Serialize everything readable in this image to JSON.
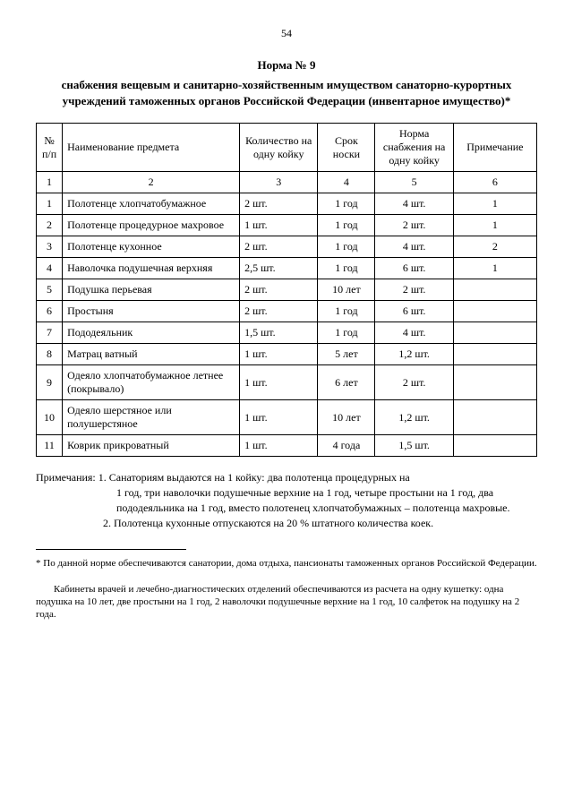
{
  "pageNumber": "54",
  "heading": {
    "title": "Норма № 9",
    "subtitle": "снабжения вещевым и санитарно-хозяйственным имуществом санаторно-курортных учреждений таможенных органов Российской Федерации (инвентарное имущество)*"
  },
  "table": {
    "headers": {
      "num": "№ п/п",
      "name": "Наименование предмета",
      "qty": "Количество на одну койку",
      "term": "Срок носки",
      "norm": "Норма снабжения на одну койку",
      "note": "Примечание"
    },
    "numRow": {
      "c1": "1",
      "c2": "2",
      "c3": "3",
      "c4": "4",
      "c5": "5",
      "c6": "6"
    },
    "rows": [
      {
        "n": "1",
        "name": "Полотенце хлопчатобумажное",
        "qty": "2 шт.",
        "term": "1 год",
        "norm": "4 шт.",
        "note": "1"
      },
      {
        "n": "2",
        "name": "Полотенце процедурное махровое",
        "qty": "1 шт.",
        "term": "1 год",
        "norm": "2 шт.",
        "note": "1"
      },
      {
        "n": "3",
        "name": "Полотенце кухонное",
        "qty": "2 шт.",
        "term": "1 год",
        "norm": "4 шт.",
        "note": "2"
      },
      {
        "n": "4",
        "name": "Наволочка подушечная верхняя",
        "qty": "2,5 шт.",
        "term": "1 год",
        "norm": "6 шт.",
        "note": "1"
      },
      {
        "n": "5",
        "name": "Подушка перьевая",
        "qty": "2 шт.",
        "term": "10 лет",
        "norm": "2 шт.",
        "note": ""
      },
      {
        "n": "6",
        "name": "Простыня",
        "qty": "2 шт.",
        "term": "1 год",
        "norm": "6 шт.",
        "note": ""
      },
      {
        "n": "7",
        "name": "Пододеяльник",
        "qty": "1,5 шт.",
        "term": "1 год",
        "norm": "4 шт.",
        "note": ""
      },
      {
        "n": "8",
        "name": "Матрац ватный",
        "qty": "1 шт.",
        "term": "5 лет",
        "norm": "1,2 шт.",
        "note": ""
      },
      {
        "n": "9",
        "name": "Одеяло хлопчатобумажное летнее (покрывало)",
        "qty": "1 шт.",
        "term": "6 лет",
        "norm": "2 шт.",
        "note": ""
      },
      {
        "n": "10",
        "name": "Одеяло шерстяное или полушерстяное",
        "qty": "1 шт.",
        "term": "10 лет",
        "norm": "1,2 шт.",
        "note": ""
      },
      {
        "n": "11",
        "name": "Коврик прикроватный",
        "qty": "1 шт.",
        "term": "4 года",
        "norm": "1,5 шт.",
        "note": ""
      }
    ]
  },
  "notes": {
    "label": "Примечания: ",
    "n1a": "1. Санаториям выдаются на 1 койку: два полотенца процедурных на",
    "n1b": "1 год, три наволочки подушечные верхние на 1 год, четыре простыни на 1 год, два пододеяльника на 1 год, вместо полотенец хлопчатобумажных – полотенца махровые.",
    "n2": "2. Полотенца кухонные отпускаются на 20 % штатного количества коек."
  },
  "footnote": "* По данной норме обеспечиваются санатории, дома отдыха, пансионаты таможенных органов Российской Федерации.",
  "bottomNote": "Кабинеты врачей и лечебно-диагностических отделений обеспечиваются из расчета на одну кушетку: одна подушка на 10 лет, две простыни на 1 год, 2 наволочки подушечные верхние на 1 год, 10 салфеток на подушку на 2 года."
}
